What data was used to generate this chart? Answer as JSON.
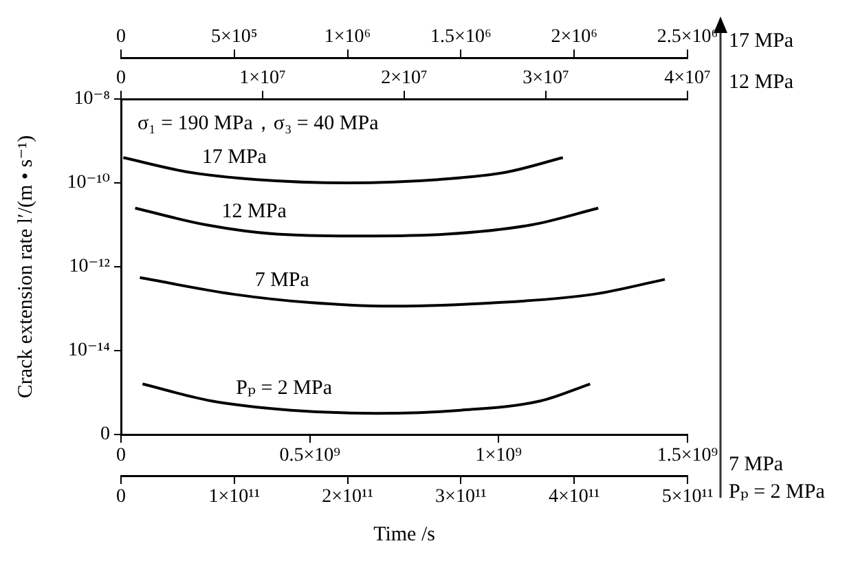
{
  "chart_data": [
    {
      "type": "line",
      "xlabel": "Time /s",
      "ylabel": "Crack extension rate l′/(m • s⁻¹)",
      "annotations": [
        "σ₁ = 190 MPa，σ₃ = 40 MPa"
      ],
      "log": "y",
      "grid": false,
      "marker": "none",
      "line_style": "solid",
      "ylim": [
        1e-16,
        1e-08
      ],
      "yticks": [
        {
          "value": 1e-08,
          "label": "10⁻⁸"
        },
        {
          "value": 1e-10,
          "label": "10⁻¹⁰"
        },
        {
          "value": 1e-12,
          "label": "10⁻¹²"
        },
        {
          "value": 1e-14,
          "label": "10⁻¹⁴"
        },
        {
          "value": 1e-16,
          "label": "0"
        }
      ],
      "xlim": [
        0,
        500000000000
      ],
      "xticks": [
        0,
        {
          "value": 100000000000,
          "label": "1×10¹¹"
        },
        {
          "value": 200000000000,
          "label": "2×10¹¹"
        },
        {
          "value": 300000000000,
          "label": "3×10¹¹"
        },
        {
          "value": 400000000000,
          "label": "4×10¹¹"
        },
        {
          "value": 500000000000,
          "label": "5×10¹¹"
        }
      ],
      "x2lim": [
        0,
        2500000
      ],
      "x2ticks": [
        0,
        {
          "value": 500000,
          "label": "5×10⁵"
        },
        {
          "value": 1000000,
          "label": "1×10⁶"
        },
        {
          "value": 1500000,
          "label": "1.5×10⁶"
        },
        {
          "value": 2000000,
          "label": "2×10⁶"
        },
        {
          "value": 2500000,
          "label": "2.5×10⁶"
        }
      ],
      "series": [
        {
          "name": "17 MPa",
          "color": "#000000",
          "axis": "x2",
          "x": [
            10000,
            300000,
            600000,
            1000000,
            1400000,
            1700000,
            1950000
          ],
          "values": [
            4e-10,
            1.8e-10,
            1.2e-10,
            1e-10,
            1.2e-10,
            1.8e-10,
            4e-10
          ]
        },
        {
          "name": "Pₚ = 2 MPa",
          "color": "#000000",
          "x": [
            19000000000,
            80000000000,
            150000000000,
            225000000000,
            300000000000,
            370000000000,
            414000000000
          ],
          "values": [
            1.6e-15,
            6.3e-16,
            3.8e-16,
            3.2e-16,
            3.8e-16,
            6.3e-16,
            1.6e-15
          ]
        }
      ]
    },
    {
      "type": "line",
      "log": "y",
      "grid": false,
      "marker": "none",
      "line_style": "solid",
      "tick_labels": "x",
      "ylim": [
        1e-16,
        1e-08
      ],
      "xlim": [
        0,
        1500000000
      ],
      "xticks": [
        0,
        {
          "value": 500000000,
          "label": "0.5×10⁹"
        },
        {
          "value": 1000000000,
          "label": "1×10⁹"
        },
        {
          "value": 1500000000,
          "label": "1.5×10⁹"
        }
      ],
      "x2lim": [
        0,
        40000000
      ],
      "x2ticks": [
        0,
        {
          "value": 10000000,
          "label": "1×10⁷"
        },
        {
          "value": 20000000,
          "label": "2×10⁷"
        },
        {
          "value": 30000000,
          "label": "3×10⁷"
        },
        {
          "value": 40000000,
          "label": "4×10⁷"
        }
      ],
      "series": [
        {
          "name": "12 MPa",
          "color": "#000000",
          "axis": "x2",
          "x": [
            1000000,
            6000000,
            11000000,
            17000000,
            23000000,
            29000000,
            33700000
          ],
          "values": [
            2.5e-11,
            1e-11,
            6e-12,
            5.4e-12,
            6e-12,
            1e-11,
            2.5e-11
          ]
        },
        {
          "name": "7 MPa",
          "color": "#000000",
          "x": [
            50000000,
            300000000,
            500000000,
            720000000,
            1000000000,
            1250000000,
            1440000000
          ],
          "values": [
            5.5e-13,
            2.2e-13,
            1.4e-13,
            1.15e-13,
            1.4e-13,
            2.2e-13,
            5e-13
          ]
        }
      ]
    }
  ]
}
